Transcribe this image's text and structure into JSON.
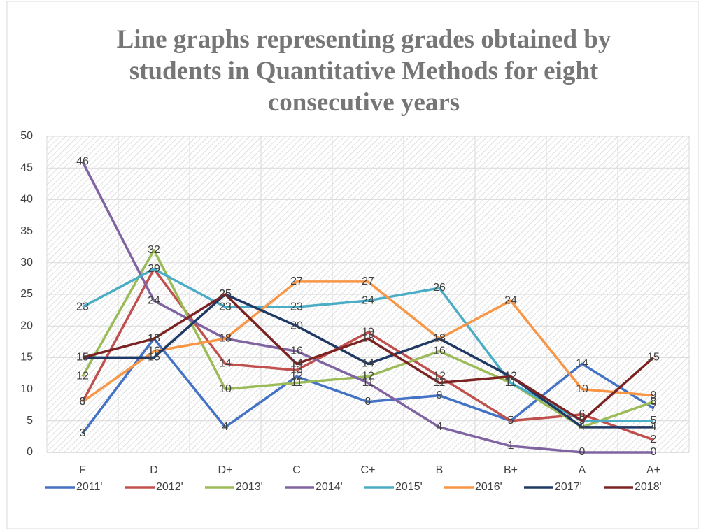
{
  "chart_data": {
    "type": "line",
    "title": "Line graphs representing grades obtained by students in Quantitative Methods for eight consecutive years",
    "categories": [
      "F",
      "D",
      "D+",
      "C",
      "C+",
      "B",
      "B+",
      "A",
      "A+"
    ],
    "ylim": [
      0,
      50
    ],
    "yticks": [
      0,
      5,
      10,
      15,
      20,
      25,
      30,
      35,
      40,
      45,
      50
    ],
    "grid": true,
    "legend": "bottom",
    "series": [
      {
        "name": "2011'",
        "color": "#4472c4",
        "values": [
          3,
          18,
          4,
          12,
          8,
          9,
          5,
          14,
          7
        ]
      },
      {
        "name": "2012'",
        "color": "#c0504d",
        "values": [
          8,
          29,
          14,
          13,
          19,
          12,
          5,
          6,
          2
        ]
      },
      {
        "name": "2013'",
        "color": "#9bbb59",
        "values": [
          12,
          32,
          10,
          11,
          12,
          16,
          11,
          4,
          8
        ]
      },
      {
        "name": "2014'",
        "color": "#8064a2",
        "values": [
          46,
          24,
          18,
          16,
          11,
          4,
          1,
          0,
          0
        ]
      },
      {
        "name": "2015'",
        "color": "#4bacc6",
        "values": [
          23,
          29,
          23,
          23,
          24,
          26,
          11,
          5,
          5
        ]
      },
      {
        "name": "2016'",
        "color": "#f79646",
        "values": [
          8,
          16,
          18,
          27,
          27,
          18,
          24,
          10,
          9
        ]
      },
      {
        "name": "2017'",
        "color": "#1f3864",
        "values": [
          15,
          15,
          25,
          20,
          14,
          18,
          12,
          4,
          4
        ]
      },
      {
        "name": "2018'",
        "color": "#7b2323",
        "values": [
          15,
          18,
          25,
          14,
          18,
          11,
          12,
          5,
          15
        ]
      }
    ]
  }
}
